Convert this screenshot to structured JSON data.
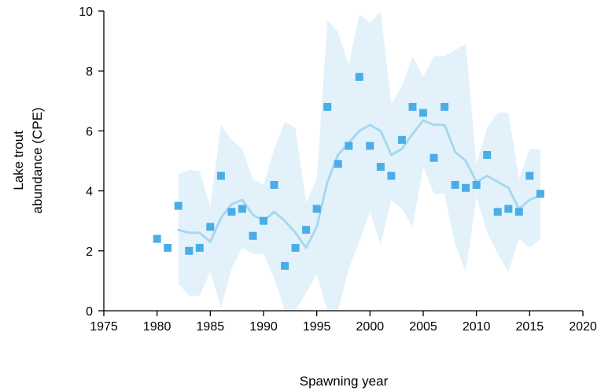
{
  "chart_data": {
    "type": "scatter",
    "xlabel": "Spawning year",
    "ylabel_lines": [
      "Lake trout",
      "abundance  (CPE)"
    ],
    "xlim": [
      1975,
      2020
    ],
    "ylim": [
      0,
      10
    ],
    "xticks": [
      1975,
      1980,
      1985,
      1990,
      1995,
      2000,
      2005,
      2010,
      2015,
      2020
    ],
    "yticks": [
      0,
      2,
      4,
      6,
      8,
      10
    ],
    "grid": false,
    "colors": {
      "points": "#4aaee6",
      "trend": "#a6d8f0",
      "band": "#e3f2fa"
    },
    "observed": {
      "x": [
        1980,
        1981,
        1982,
        1983,
        1984,
        1985,
        1986,
        1987,
        1988,
        1989,
        1990,
        1991,
        1992,
        1993,
        1994,
        1995,
        1996,
        1997,
        1998,
        1999,
        2000,
        2001,
        2002,
        2003,
        2004,
        2005,
        2006,
        2007,
        2008,
        2009,
        2010,
        2011,
        2012,
        2013,
        2014,
        2015,
        2016
      ],
      "y": [
        2.4,
        2.1,
        3.5,
        2.0,
        2.1,
        2.8,
        4.5,
        3.3,
        3.4,
        2.5,
        3.0,
        4.2,
        1.5,
        2.1,
        2.7,
        3.4,
        6.8,
        4.9,
        5.5,
        7.8,
        5.5,
        4.8,
        4.5,
        5.7,
        6.8,
        6.6,
        5.1,
        6.8,
        4.2,
        4.1,
        4.2,
        5.2,
        3.3,
        3.4,
        3.3,
        4.5,
        3.9
      ]
    },
    "trend_segments": [
      {
        "x": [
          1982,
          1983,
          1984,
          1985,
          1986,
          1987,
          1988,
          1989,
          1990,
          1991,
          1992,
          1993,
          1994,
          1995,
          1996,
          1997,
          1998,
          1999,
          2000,
          2001,
          2002,
          2003,
          2004,
          2005,
          2006,
          2007,
          2008,
          2009,
          2010,
          2011,
          2012,
          2013,
          2014
        ],
        "y": [
          2.7,
          2.6,
          2.6,
          2.3,
          3.1,
          3.55,
          3.7,
          3.2,
          3.0,
          3.3,
          3.0,
          2.6,
          2.1,
          2.8,
          4.3,
          5.2,
          5.6,
          6.0,
          6.2,
          6.0,
          5.2,
          5.4,
          5.9,
          6.35,
          6.2,
          6.2,
          5.3,
          5.0,
          4.3,
          4.5,
          4.3,
          4.1,
          3.4
        ]
      },
      {
        "x": [
          2014,
          2015,
          2016
        ],
        "y": [
          3.4,
          3.7,
          3.85
        ]
      }
    ],
    "band_segments": [
      {
        "x": [
          1982,
          1983,
          1984,
          1985,
          1986,
          1987,
          1988,
          1989,
          1990,
          1991,
          1992,
          1993,
          1994,
          1995,
          1996,
          1997,
          1998,
          1999,
          2000,
          2001,
          2002,
          2003,
          2004,
          2005,
          2006,
          2007,
          2008,
          2009,
          2010,
          2011,
          2012,
          2013,
          2014
        ],
        "lower": [
          0.9,
          0.5,
          0.5,
          1.3,
          0.1,
          1.4,
          2.1,
          1.9,
          1.9,
          1.1,
          0,
          0,
          0.6,
          1.2,
          0,
          0,
          1.4,
          2.3,
          3.3,
          2.2,
          3.7,
          3.4,
          2.8,
          4.8,
          3.9,
          3.9,
          2.2,
          1.3,
          3.8,
          2.6,
          1.9,
          1.3,
          2.4
        ],
        "upper": [
          4.55,
          4.7,
          4.65,
          3.5,
          6.2,
          5.7,
          5.4,
          4.4,
          4.2,
          5.4,
          6.3,
          6.1,
          3.6,
          4.4,
          9.7,
          9.3,
          8.2,
          9.9,
          9.6,
          10.0,
          6.9,
          7.5,
          8.5,
          7.8,
          8.5,
          8.5,
          8.7,
          8.9,
          4.9,
          6.1,
          6.6,
          6.6,
          4.4
        ]
      },
      {
        "x": [
          2014,
          2015,
          2016
        ],
        "lower": [
          2.4,
          2.1,
          2.4
        ],
        "upper": [
          4.4,
          5.4,
          5.4
        ]
      }
    ]
  }
}
